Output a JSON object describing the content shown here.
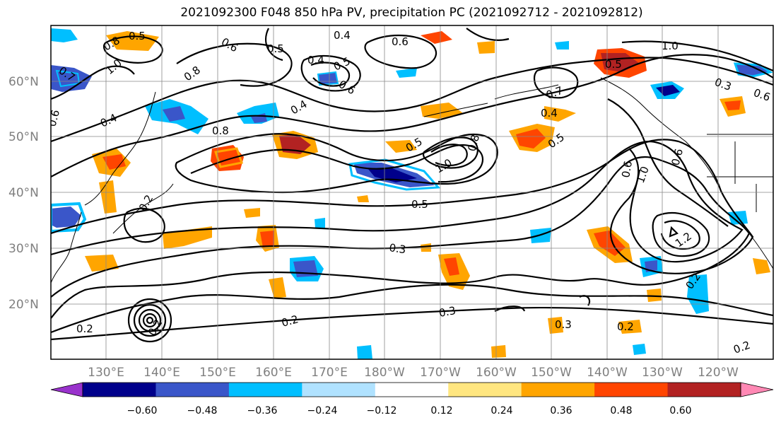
{
  "title": "2021092300 F048 850 hPa PV, precipitation PC (2021092712 - 2021092812)",
  "map": {
    "lat_labels": [
      "60°N",
      "50°N",
      "40°N",
      "30°N",
      "20°N"
    ],
    "lon_labels": [
      "130°E",
      "140°E",
      "150°E",
      "160°E",
      "170°E",
      "180°W",
      "170°W",
      "160°W",
      "150°W",
      "140°W",
      "130°W",
      "120°W"
    ],
    "contour_labels": [
      "0.5",
      "0.6",
      "0.5",
      "0.4",
      "0.6",
      "0.8",
      "1.0",
      "0.7",
      "0.8",
      "0.4",
      "0.6",
      "0.4",
      "0.8",
      "0.5",
      "0.4",
      "0.6",
      "1.0",
      "0.5",
      "0.5",
      "0.3",
      "0.2",
      "0.3",
      "0.3",
      "0.2",
      "0.2",
      "0.2",
      "1.0",
      "0.5",
      "0.7",
      "0.4",
      "0.5",
      "0.6",
      "1.0",
      "0.6",
      "0.8",
      "1.2",
      "0.2",
      "0.3",
      "0.6",
      "0.2",
      "0.2"
    ]
  },
  "colorbar": {
    "ticks": [
      "−0.60",
      "−0.48",
      "−0.36",
      "−0.24",
      "−0.12",
      "0.12",
      "0.24",
      "0.36",
      "0.48",
      "0.60"
    ],
    "colors": [
      "#9932cc",
      "#00008b",
      "#3a56c9",
      "#00bfff",
      "#b0e2ff",
      "#ffffff",
      "#ffe680",
      "#ffa500",
      "#ff4500",
      "#b22222",
      "#ff88b4"
    ]
  }
}
